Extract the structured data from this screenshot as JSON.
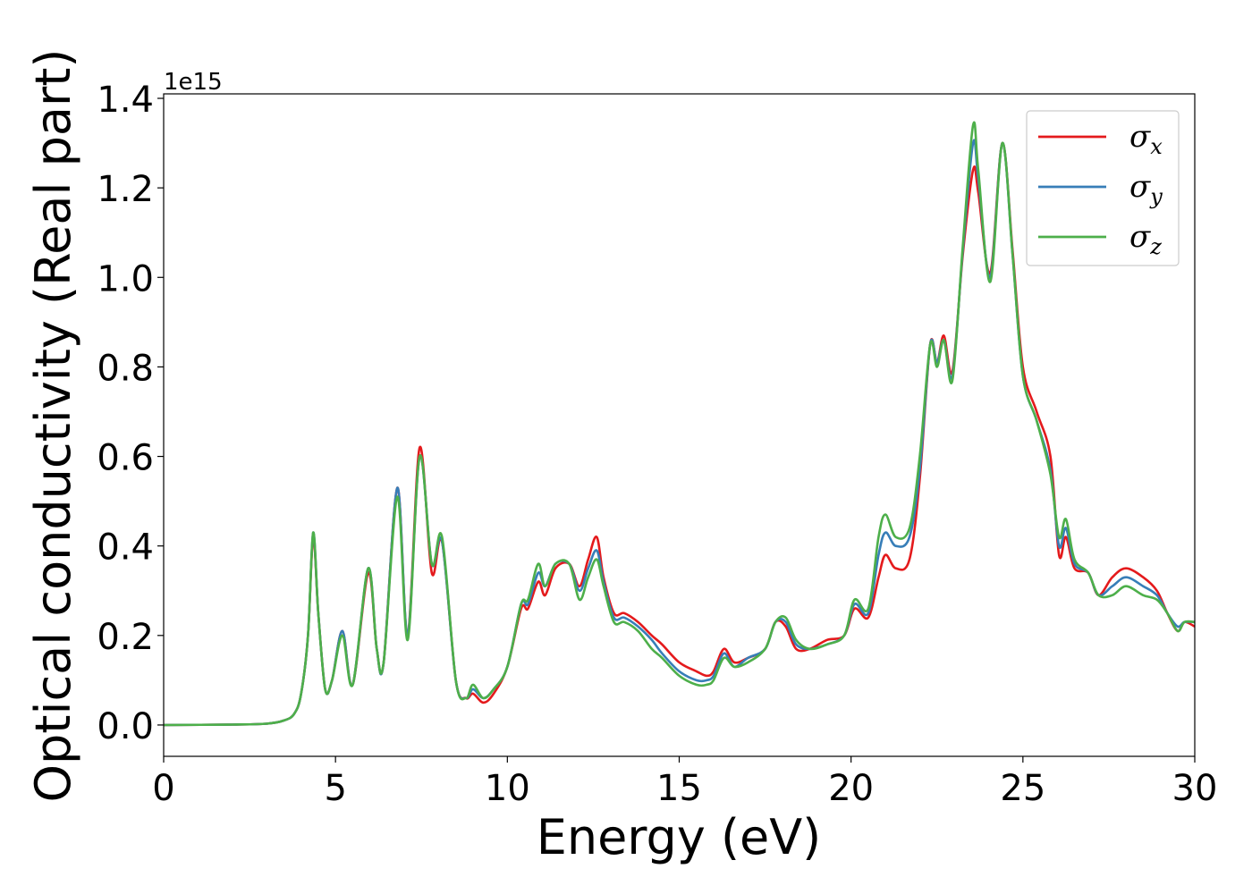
{
  "chart_data": {
    "type": "line",
    "title": "",
    "xlabel": "Energy (eV)",
    "ylabel": "Optical conductivity (Real part)",
    "offset_text": "1e15",
    "xlim": [
      0,
      30
    ],
    "ylim": [
      -0.07,
      1.41
    ],
    "x_ticks": [
      "0",
      "5",
      "10",
      "15",
      "20",
      "25",
      "30"
    ],
    "y_ticks": [
      "0.0",
      "0.2",
      "0.4",
      "0.6",
      "0.8",
      "1.0",
      "1.2",
      "1.4"
    ],
    "grid": false,
    "legend_position": "top-right",
    "series": [
      {
        "name": "σx",
        "symbol": "σ",
        "subscript": "x",
        "color": "#e41a1c",
        "points": [
          [
            0,
            0
          ],
          [
            2,
            0.001
          ],
          [
            3,
            0.003
          ],
          [
            3.5,
            0.01
          ],
          [
            3.8,
            0.025
          ],
          [
            4.0,
            0.07
          ],
          [
            4.2,
            0.2
          ],
          [
            4.35,
            0.42
          ],
          [
            4.5,
            0.25
          ],
          [
            4.7,
            0.08
          ],
          [
            4.9,
            0.1
          ],
          [
            5.2,
            0.21
          ],
          [
            5.5,
            0.09
          ],
          [
            5.95,
            0.34
          ],
          [
            6.2,
            0.17
          ],
          [
            6.4,
            0.14
          ],
          [
            6.8,
            0.53
          ],
          [
            7.1,
            0.2
          ],
          [
            7.45,
            0.62
          ],
          [
            7.8,
            0.34
          ],
          [
            8.1,
            0.41
          ],
          [
            8.5,
            0.1
          ],
          [
            8.8,
            0.06
          ],
          [
            9.0,
            0.07
          ],
          [
            9.3,
            0.05
          ],
          [
            9.6,
            0.07
          ],
          [
            10.0,
            0.13
          ],
          [
            10.4,
            0.26
          ],
          [
            10.6,
            0.26
          ],
          [
            10.9,
            0.32
          ],
          [
            11.1,
            0.29
          ],
          [
            11.4,
            0.35
          ],
          [
            11.8,
            0.36
          ],
          [
            12.1,
            0.31
          ],
          [
            12.35,
            0.37
          ],
          [
            12.6,
            0.42
          ],
          [
            12.8,
            0.33
          ],
          [
            13.1,
            0.25
          ],
          [
            13.4,
            0.25
          ],
          [
            13.8,
            0.23
          ],
          [
            14.2,
            0.2
          ],
          [
            14.5,
            0.18
          ],
          [
            15.0,
            0.14
          ],
          [
            15.5,
            0.12
          ],
          [
            15.8,
            0.11
          ],
          [
            16.0,
            0.12
          ],
          [
            16.3,
            0.17
          ],
          [
            16.6,
            0.14
          ],
          [
            17.0,
            0.15
          ],
          [
            17.5,
            0.17
          ],
          [
            17.8,
            0.23
          ],
          [
            18.1,
            0.22
          ],
          [
            18.4,
            0.17
          ],
          [
            18.8,
            0.17
          ],
          [
            19.3,
            0.19
          ],
          [
            19.8,
            0.2
          ],
          [
            20.1,
            0.26
          ],
          [
            20.5,
            0.24
          ],
          [
            20.8,
            0.33
          ],
          [
            21.0,
            0.38
          ],
          [
            21.3,
            0.35
          ],
          [
            21.7,
            0.37
          ],
          [
            22.0,
            0.55
          ],
          [
            22.3,
            0.85
          ],
          [
            22.5,
            0.81
          ],
          [
            22.7,
            0.87
          ],
          [
            22.95,
            0.79
          ],
          [
            23.25,
            1.05
          ],
          [
            23.55,
            1.24
          ],
          [
            23.7,
            1.19
          ],
          [
            24.05,
            1.01
          ],
          [
            24.4,
            1.3
          ],
          [
            24.7,
            1.06
          ],
          [
            25.0,
            0.8
          ],
          [
            25.4,
            0.7
          ],
          [
            25.8,
            0.6
          ],
          [
            26.05,
            0.38
          ],
          [
            26.25,
            0.42
          ],
          [
            26.5,
            0.35
          ],
          [
            26.9,
            0.34
          ],
          [
            27.2,
            0.29
          ],
          [
            27.6,
            0.33
          ],
          [
            28.0,
            0.35
          ],
          [
            28.5,
            0.33
          ],
          [
            28.9,
            0.3
          ],
          [
            29.2,
            0.25
          ],
          [
            29.5,
            0.21
          ],
          [
            29.7,
            0.23
          ],
          [
            30.0,
            0.22
          ]
        ]
      },
      {
        "name": "σy",
        "symbol": "σ",
        "subscript": "y",
        "color": "#377eb8",
        "points": [
          [
            0,
            0
          ],
          [
            2,
            0.001
          ],
          [
            3,
            0.003
          ],
          [
            3.5,
            0.01
          ],
          [
            3.8,
            0.025
          ],
          [
            4.0,
            0.07
          ],
          [
            4.2,
            0.2
          ],
          [
            4.35,
            0.43
          ],
          [
            4.5,
            0.25
          ],
          [
            4.7,
            0.08
          ],
          [
            4.9,
            0.1
          ],
          [
            5.2,
            0.21
          ],
          [
            5.5,
            0.09
          ],
          [
            5.95,
            0.35
          ],
          [
            6.2,
            0.17
          ],
          [
            6.4,
            0.14
          ],
          [
            6.8,
            0.53
          ],
          [
            7.1,
            0.2
          ],
          [
            7.45,
            0.6
          ],
          [
            7.8,
            0.36
          ],
          [
            8.1,
            0.41
          ],
          [
            8.5,
            0.1
          ],
          [
            8.8,
            0.06
          ],
          [
            9.0,
            0.08
          ],
          [
            9.3,
            0.06
          ],
          [
            9.6,
            0.08
          ],
          [
            10.0,
            0.13
          ],
          [
            10.4,
            0.27
          ],
          [
            10.6,
            0.27
          ],
          [
            10.9,
            0.34
          ],
          [
            11.1,
            0.31
          ],
          [
            11.4,
            0.36
          ],
          [
            11.8,
            0.36
          ],
          [
            12.1,
            0.3
          ],
          [
            12.35,
            0.35
          ],
          [
            12.6,
            0.39
          ],
          [
            12.8,
            0.32
          ],
          [
            13.1,
            0.24
          ],
          [
            13.4,
            0.24
          ],
          [
            13.8,
            0.22
          ],
          [
            14.2,
            0.19
          ],
          [
            14.5,
            0.16
          ],
          [
            15.0,
            0.12
          ],
          [
            15.5,
            0.1
          ],
          [
            15.8,
            0.1
          ],
          [
            16.0,
            0.11
          ],
          [
            16.3,
            0.16
          ],
          [
            16.6,
            0.13
          ],
          [
            17.0,
            0.15
          ],
          [
            17.5,
            0.17
          ],
          [
            17.8,
            0.23
          ],
          [
            18.1,
            0.23
          ],
          [
            18.4,
            0.18
          ],
          [
            18.8,
            0.17
          ],
          [
            19.3,
            0.18
          ],
          [
            19.8,
            0.2
          ],
          [
            20.1,
            0.27
          ],
          [
            20.5,
            0.25
          ],
          [
            20.8,
            0.38
          ],
          [
            21.0,
            0.43
          ],
          [
            21.3,
            0.4
          ],
          [
            21.7,
            0.42
          ],
          [
            22.0,
            0.57
          ],
          [
            22.3,
            0.85
          ],
          [
            22.5,
            0.81
          ],
          [
            22.7,
            0.86
          ],
          [
            22.95,
            0.78
          ],
          [
            23.25,
            1.06
          ],
          [
            23.55,
            1.3
          ],
          [
            23.7,
            1.22
          ],
          [
            24.05,
            1.0
          ],
          [
            24.4,
            1.3
          ],
          [
            24.7,
            1.05
          ],
          [
            25.0,
            0.78
          ],
          [
            25.4,
            0.68
          ],
          [
            25.8,
            0.57
          ],
          [
            26.05,
            0.4
          ],
          [
            26.25,
            0.44
          ],
          [
            26.5,
            0.36
          ],
          [
            26.9,
            0.34
          ],
          [
            27.2,
            0.29
          ],
          [
            27.6,
            0.31
          ],
          [
            28.0,
            0.33
          ],
          [
            28.5,
            0.31
          ],
          [
            28.9,
            0.29
          ],
          [
            29.2,
            0.25
          ],
          [
            29.5,
            0.22
          ],
          [
            29.7,
            0.23
          ],
          [
            30.0,
            0.23
          ]
        ]
      },
      {
        "name": "σz",
        "symbol": "σ",
        "subscript": "z",
        "color": "#4daf4a",
        "points": [
          [
            0,
            0
          ],
          [
            2,
            0.001
          ],
          [
            3,
            0.003
          ],
          [
            3.5,
            0.01
          ],
          [
            3.8,
            0.025
          ],
          [
            4.0,
            0.07
          ],
          [
            4.2,
            0.2
          ],
          [
            4.35,
            0.43
          ],
          [
            4.5,
            0.25
          ],
          [
            4.7,
            0.08
          ],
          [
            4.9,
            0.1
          ],
          [
            5.2,
            0.2
          ],
          [
            5.5,
            0.09
          ],
          [
            5.95,
            0.35
          ],
          [
            6.2,
            0.17
          ],
          [
            6.4,
            0.14
          ],
          [
            6.8,
            0.51
          ],
          [
            7.1,
            0.19
          ],
          [
            7.45,
            0.6
          ],
          [
            7.8,
            0.36
          ],
          [
            8.1,
            0.42
          ],
          [
            8.5,
            0.1
          ],
          [
            8.8,
            0.06
          ],
          [
            9.0,
            0.09
          ],
          [
            9.3,
            0.06
          ],
          [
            9.6,
            0.08
          ],
          [
            10.0,
            0.13
          ],
          [
            10.4,
            0.27
          ],
          [
            10.6,
            0.28
          ],
          [
            10.9,
            0.36
          ],
          [
            11.1,
            0.31
          ],
          [
            11.4,
            0.36
          ],
          [
            11.8,
            0.36
          ],
          [
            12.1,
            0.28
          ],
          [
            12.35,
            0.33
          ],
          [
            12.6,
            0.37
          ],
          [
            12.8,
            0.31
          ],
          [
            13.1,
            0.23
          ],
          [
            13.4,
            0.23
          ],
          [
            13.8,
            0.21
          ],
          [
            14.2,
            0.17
          ],
          [
            14.5,
            0.15
          ],
          [
            15.0,
            0.11
          ],
          [
            15.5,
            0.09
          ],
          [
            15.8,
            0.09
          ],
          [
            16.0,
            0.1
          ],
          [
            16.3,
            0.15
          ],
          [
            16.6,
            0.13
          ],
          [
            17.0,
            0.14
          ],
          [
            17.5,
            0.17
          ],
          [
            17.8,
            0.23
          ],
          [
            18.1,
            0.24
          ],
          [
            18.4,
            0.19
          ],
          [
            18.8,
            0.17
          ],
          [
            19.3,
            0.18
          ],
          [
            19.8,
            0.2
          ],
          [
            20.1,
            0.28
          ],
          [
            20.5,
            0.26
          ],
          [
            20.8,
            0.42
          ],
          [
            21.0,
            0.47
          ],
          [
            21.3,
            0.42
          ],
          [
            21.7,
            0.44
          ],
          [
            22.0,
            0.6
          ],
          [
            22.3,
            0.85
          ],
          [
            22.5,
            0.8
          ],
          [
            22.7,
            0.86
          ],
          [
            22.95,
            0.77
          ],
          [
            23.25,
            1.07
          ],
          [
            23.55,
            1.34
          ],
          [
            23.7,
            1.24
          ],
          [
            24.05,
            0.99
          ],
          [
            24.4,
            1.3
          ],
          [
            24.7,
            1.05
          ],
          [
            25.0,
            0.78
          ],
          [
            25.4,
            0.68
          ],
          [
            25.8,
            0.56
          ],
          [
            26.05,
            0.42
          ],
          [
            26.25,
            0.46
          ],
          [
            26.5,
            0.37
          ],
          [
            26.9,
            0.34
          ],
          [
            27.2,
            0.29
          ],
          [
            27.6,
            0.29
          ],
          [
            28.0,
            0.31
          ],
          [
            28.5,
            0.29
          ],
          [
            28.9,
            0.28
          ],
          [
            29.2,
            0.25
          ],
          [
            29.5,
            0.21
          ],
          [
            29.7,
            0.23
          ],
          [
            30.0,
            0.23
          ]
        ]
      }
    ]
  }
}
